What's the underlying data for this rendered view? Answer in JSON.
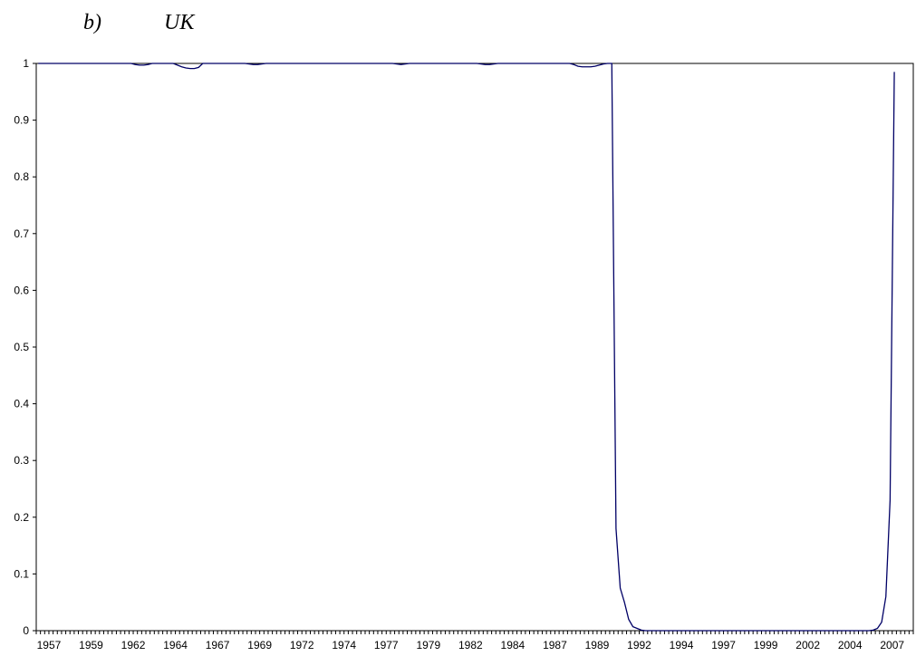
{
  "chart_data": {
    "type": "line",
    "panel_label": "b)",
    "title": "UK",
    "color": "#000066",
    "ylim": [
      0,
      1
    ],
    "yticks": [
      0,
      0.1,
      0.2,
      0.3,
      0.4,
      0.5,
      0.6,
      0.7,
      0.8,
      0.9,
      1
    ],
    "grid": false,
    "categories": [
      null,
      null,
      null,
      "1957",
      null,
      null,
      null,
      null,
      null,
      null,
      null,
      null,
      null,
      "1959",
      null,
      null,
      null,
      null,
      null,
      null,
      null,
      null,
      null,
      "1962",
      null,
      null,
      null,
      null,
      null,
      null,
      null,
      null,
      null,
      "1964",
      null,
      null,
      null,
      null,
      null,
      null,
      null,
      null,
      null,
      "1967",
      null,
      null,
      null,
      null,
      null,
      null,
      null,
      null,
      null,
      "1969",
      null,
      null,
      null,
      null,
      null,
      null,
      null,
      null,
      null,
      "1972",
      null,
      null,
      null,
      null,
      null,
      null,
      null,
      null,
      null,
      "1974",
      null,
      null,
      null,
      null,
      null,
      null,
      null,
      null,
      null,
      "1977",
      null,
      null,
      null,
      null,
      null,
      null,
      null,
      null,
      null,
      "1979",
      null,
      null,
      null,
      null,
      null,
      null,
      null,
      null,
      null,
      "1982",
      null,
      null,
      null,
      null,
      null,
      null,
      null,
      null,
      null,
      "1984",
      null,
      null,
      null,
      null,
      null,
      null,
      null,
      null,
      null,
      "1987",
      null,
      null,
      null,
      null,
      null,
      null,
      null,
      null,
      null,
      "1989",
      null,
      null,
      null,
      null,
      null,
      null,
      null,
      null,
      null,
      "1992",
      null,
      null,
      null,
      null,
      null,
      null,
      null,
      null,
      null,
      "1994",
      null,
      null,
      null,
      null,
      null,
      null,
      null,
      null,
      null,
      "1997",
      null,
      null,
      null,
      null,
      null,
      null,
      null,
      null,
      null,
      "1999",
      null,
      null,
      null,
      null,
      null,
      null,
      null,
      null,
      null,
      "2002",
      null,
      null,
      null,
      null,
      null,
      null,
      null,
      null,
      null,
      "2004",
      null,
      null,
      null,
      null,
      null,
      null,
      null,
      null,
      null,
      "2007",
      null,
      null,
      null,
      null
    ],
    "values": [
      1,
      1,
      1,
      1,
      1,
      1,
      1,
      1,
      1,
      1,
      1,
      1,
      1,
      1,
      1,
      1,
      1,
      1,
      1,
      1,
      1,
      1,
      1,
      0.998,
      0.997,
      0.997,
      0.998,
      1,
      1,
      1,
      1,
      1,
      1,
      0.997,
      0.994,
      0.992,
      0.991,
      0.991,
      0.993,
      1,
      1,
      1,
      1,
      1,
      1,
      1,
      1,
      1,
      1,
      1,
      0.999,
      0.998,
      0.998,
      0.999,
      1,
      1,
      1,
      1,
      1,
      1,
      1,
      1,
      1,
      1,
      1,
      1,
      1,
      1,
      1,
      1,
      1,
      1,
      1,
      1,
      1,
      1,
      1,
      1,
      1,
      1,
      1,
      1,
      1,
      1,
      1,
      0.999,
      0.998,
      0.999,
      1,
      1,
      1,
      1,
      1,
      1,
      1,
      1,
      1,
      1,
      1,
      1,
      1,
      1,
      1,
      1,
      1,
      0.999,
      0.998,
      0.998,
      0.999,
      1,
      1,
      1,
      1,
      1,
      1,
      1,
      1,
      1,
      1,
      1,
      1,
      1,
      1,
      1,
      1,
      1,
      1,
      0.998,
      0.995,
      0.994,
      0.994,
      0.994,
      0.995,
      0.997,
      0.999,
      1,
      1,
      0.18,
      0.075,
      0.05,
      0.02,
      0.007,
      0.004,
      0.001,
      0,
      0,
      0,
      0,
      0,
      0,
      0,
      0,
      0,
      0,
      0,
      0,
      0,
      0,
      0,
      0,
      0,
      0,
      0,
      0,
      0,
      0,
      0,
      0,
      0,
      0,
      0,
      0,
      0,
      0,
      0,
      0,
      0,
      0,
      0,
      0,
      0,
      0,
      0,
      0,
      0,
      0,
      0,
      0,
      0,
      0,
      0,
      0,
      0,
      0,
      0,
      0,
      0,
      0,
      0.001,
      0.004,
      0.015,
      0.06,
      0.23,
      0.985,
      null,
      null,
      null,
      null
    ]
  }
}
